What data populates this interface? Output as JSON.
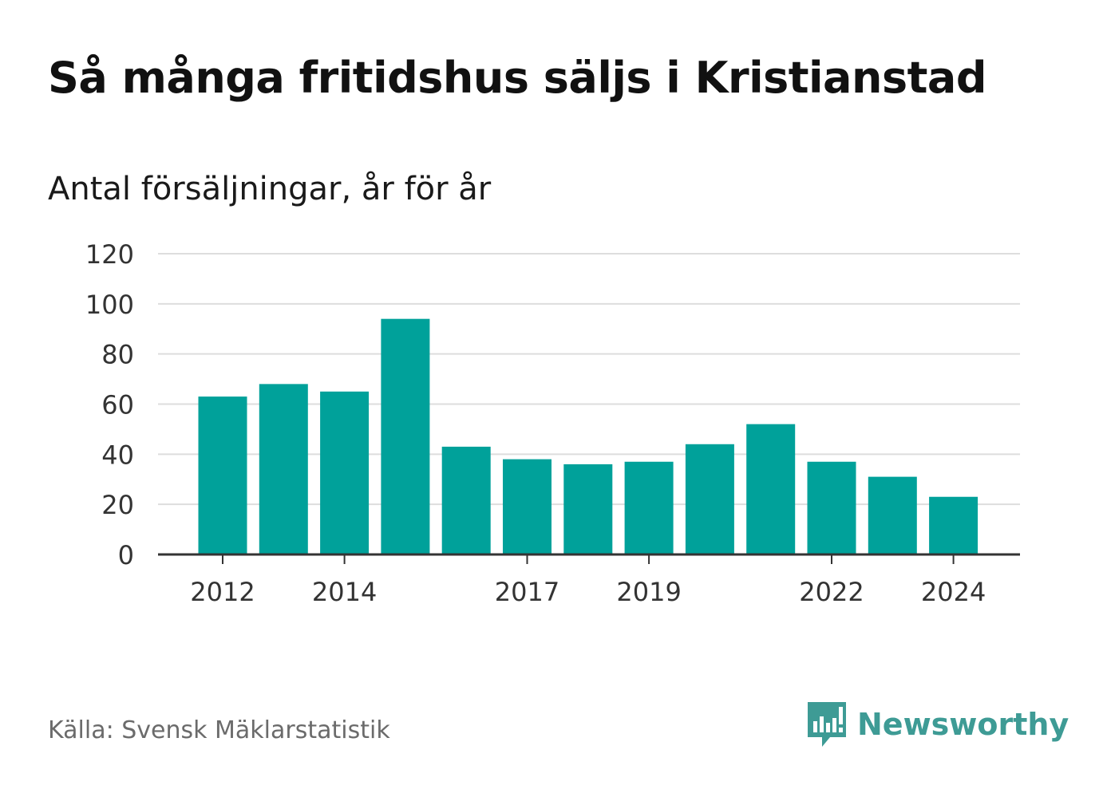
{
  "header": {
    "title": "Så många fritidshus säljs i Kristianstad",
    "subtitle": "Antal försäljningar, år för år"
  },
  "footer": {
    "source": "Källa: Svensk Mäklarstatistik",
    "brand": "Newsworthy",
    "brand_icon": "newsworthy-logo-icon"
  },
  "colors": {
    "bar": "#00a19a",
    "grid": "#dddddd",
    "axis": "#333333",
    "brand": "#3e9b95"
  },
  "chart_data": {
    "type": "bar",
    "title": "Så många fritidshus säljs i Kristianstad",
    "subtitle": "Antal försäljningar, år för år",
    "categories": [
      "2012",
      "2013",
      "2014",
      "2015",
      "2016",
      "2017",
      "2018",
      "2019",
      "2020",
      "2021",
      "2022",
      "2023",
      "2024"
    ],
    "values": [
      63,
      68,
      65,
      94,
      43,
      38,
      36,
      37,
      44,
      52,
      37,
      31,
      23
    ],
    "x_tick_labels": [
      "2012",
      "2014",
      "2017",
      "2019",
      "2022",
      "2024"
    ],
    "y_ticks": [
      0,
      20,
      40,
      60,
      80,
      100,
      120
    ],
    "ylim": [
      0,
      120
    ],
    "grid": true,
    "legend": "none"
  }
}
